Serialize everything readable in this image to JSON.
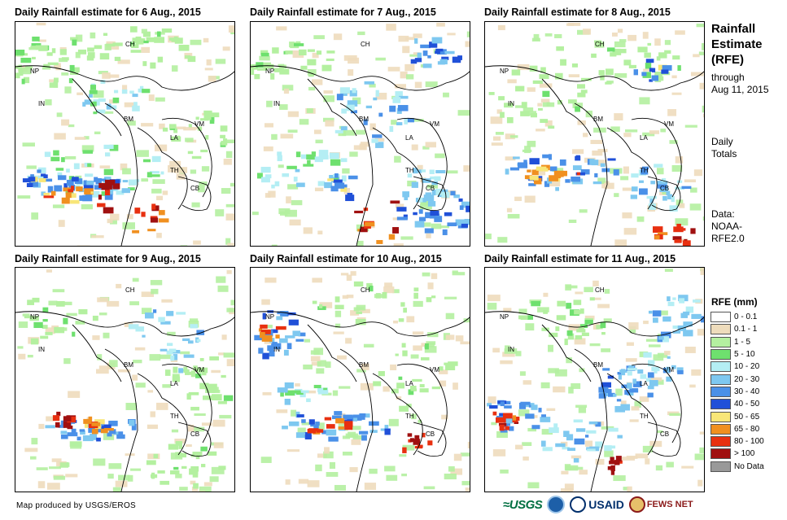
{
  "panels": [
    {
      "title": "Daily Rainfall estimate for 6 Aug., 2015"
    },
    {
      "title": "Daily Rainfall estimate for 7 Aug., 2015"
    },
    {
      "title": "Daily Rainfall estimate for 8 Aug., 2015"
    },
    {
      "title": "Daily Rainfall estimate for 9 Aug., 2015"
    },
    {
      "title": "Daily Rainfall estimate for 10 Aug., 2015"
    },
    {
      "title": "Daily Rainfall estimate for 11 Aug., 2015"
    }
  ],
  "country_labels": {
    "ch": "CH",
    "np": "NP",
    "in": "IN",
    "bm": "BM",
    "la": "LA",
    "vm": "VM",
    "th": "TH",
    "cb": "CB"
  },
  "sidebar": {
    "title_line1": "Rainfall",
    "title_line2": "Estimate",
    "title_line3": "(RFE)",
    "through_line1": "through",
    "through_line2": "Aug 11, 2015",
    "totals_line1": "Daily",
    "totals_line2": "Totals",
    "data_line1": "Data:",
    "data_line2": "NOAA-",
    "data_line3": "RFE2.0"
  },
  "legend": {
    "title": "RFE (mm)",
    "items": [
      {
        "label": "0 - 0.1",
        "color": "#ffffff"
      },
      {
        "label": "0.1 - 1",
        "color": "#eedcbc"
      },
      {
        "label": "1 - 5",
        "color": "#b4f0a0"
      },
      {
        "label": "5 - 10",
        "color": "#6ee06e"
      },
      {
        "label": "10 - 20",
        "color": "#b4eef4"
      },
      {
        "label": "20 - 30",
        "color": "#7ec8f0"
      },
      {
        "label": "30 - 40",
        "color": "#4a90e8"
      },
      {
        "label": "40 - 50",
        "color": "#2050d8"
      },
      {
        "label": "50 - 65",
        "color": "#f8e678"
      },
      {
        "label": "65 - 80",
        "color": "#f09020"
      },
      {
        "label": "80 - 100",
        "color": "#e83010"
      },
      {
        "label": "> 100",
        "color": "#a01010"
      },
      {
        "label": "No Data",
        "color": "#999999"
      }
    ]
  },
  "credit": "Map produced by USGS/EROS",
  "logos": {
    "usgs": "≈USGS",
    "usaid": "USAID",
    "fews": "FEWS NET"
  }
}
